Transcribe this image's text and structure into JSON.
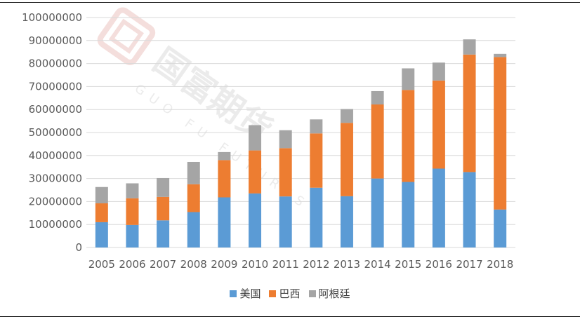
{
  "chart_data": {
    "type": "bar",
    "stacked": true,
    "categories": [
      "2005",
      "2006",
      "2007",
      "2008",
      "2009",
      "2010",
      "2011",
      "2012",
      "2013",
      "2014",
      "2015",
      "2016",
      "2017",
      "2018"
    ],
    "series": [
      {
        "name": "美国",
        "color": "#5B9BD5",
        "values": [
          11000000,
          9800000,
          11800000,
          15400000,
          21800000,
          23500000,
          22200000,
          26000000,
          22300000,
          30000000,
          28500000,
          34300000,
          32800000,
          16500000
        ]
      },
      {
        "name": "巴西",
        "color": "#ED7D31",
        "values": [
          8200000,
          11600000,
          10200000,
          12100000,
          16200000,
          18700000,
          21000000,
          23600000,
          31900000,
          32200000,
          40000000,
          38300000,
          51100000,
          66300000
        ]
      },
      {
        "name": "阿根廷",
        "color": "#A5A5A5",
        "values": [
          7100000,
          6500000,
          8200000,
          9700000,
          3500000,
          11000000,
          7800000,
          6100000,
          6000000,
          5800000,
          9400000,
          7800000,
          6600000,
          1400000
        ]
      }
    ],
    "ylim": [
      0,
      100000000
    ],
    "yticks": [
      "0",
      "10000000",
      "20000000",
      "30000000",
      "40000000",
      "50000000",
      "60000000",
      "70000000",
      "80000000",
      "90000000",
      "100000000"
    ],
    "grid": true,
    "legend_position": "bottom"
  }
}
